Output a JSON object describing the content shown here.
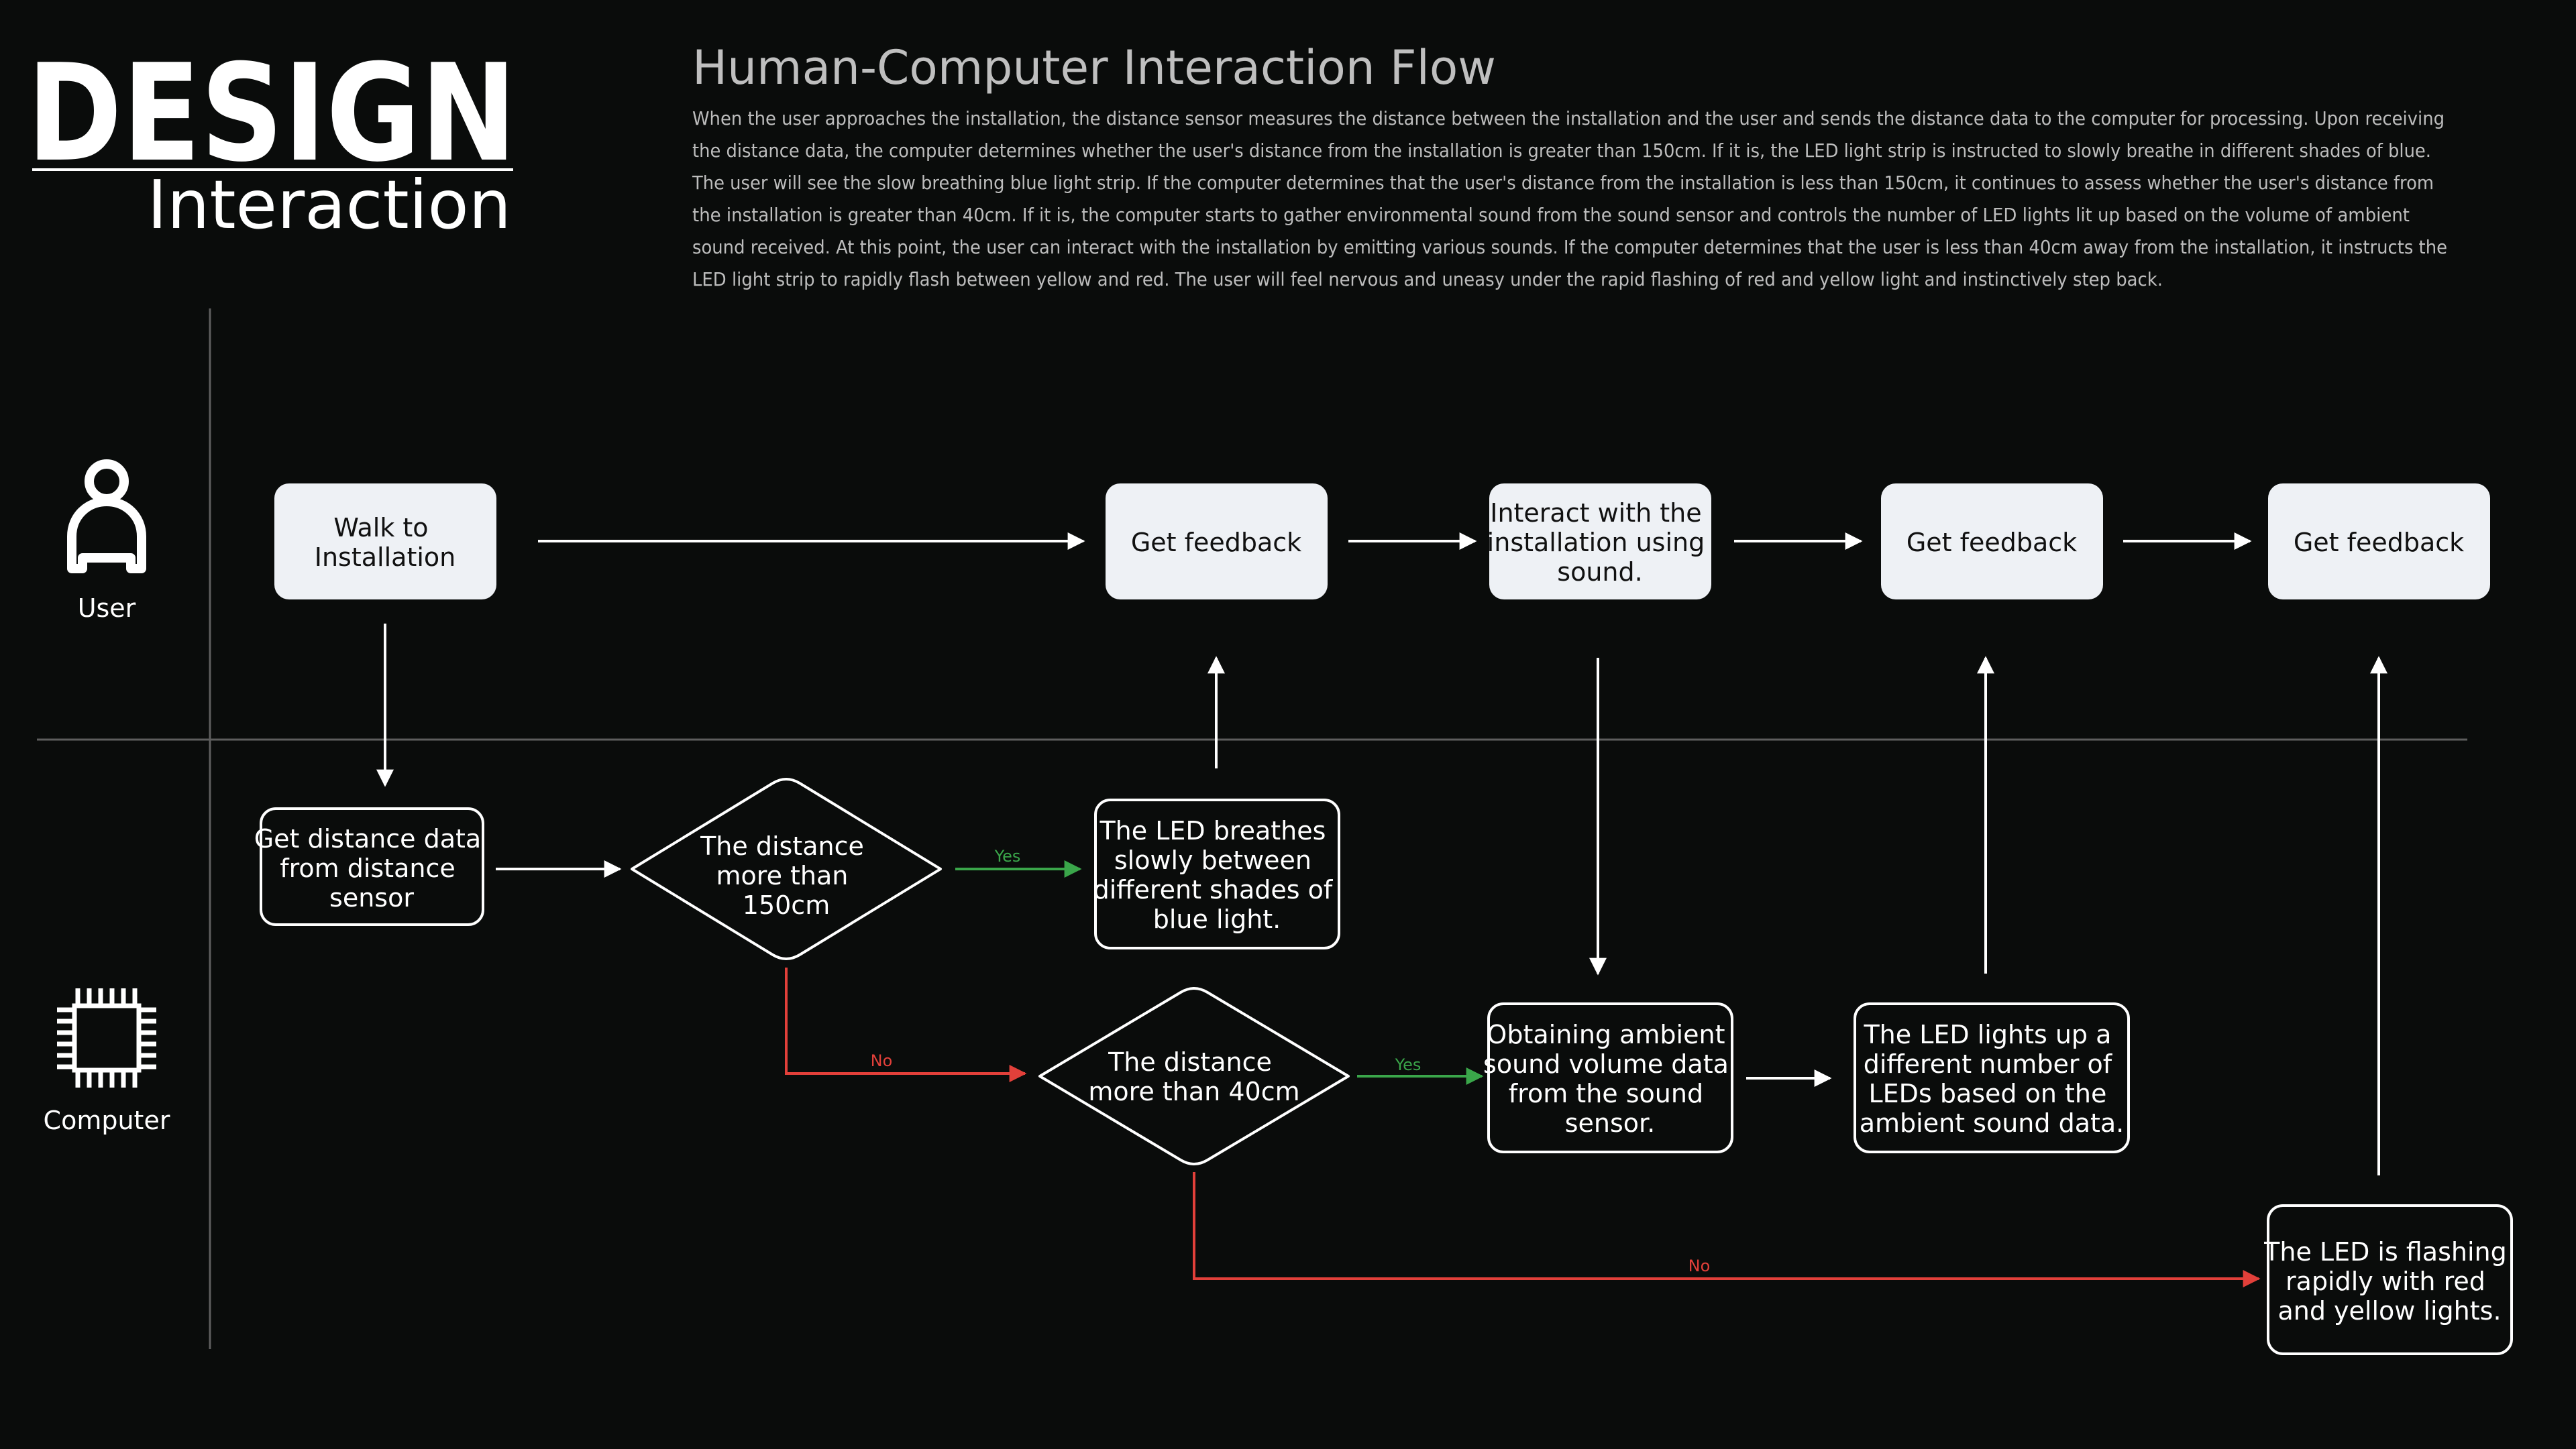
{
  "header": {
    "design": "DESIGN",
    "interaction": "Interaction",
    "title": "Human-Computer Interaction Flow",
    "description": [
      "When the user approaches the installation, the distance sensor measures the distance between the installation and the user and sends the distance data to the computer for processing. Upon receiving",
      "the distance data, the computer determines whether the user's distance from the installation is greater than 150cm. If it is, the LED light strip is instructed to slowly breathe in different shades of blue.",
      "The user will see the slow breathing blue light strip. If the computer determines that the user's distance from the installation is less than 150cm, it continues to assess whether the user's distance from",
      "the installation is greater than 40cm. If it is, the computer starts to gather environmental sound from the sound sensor and controls the number of LED lights lit up based on the volume of ambient",
      "sound received. At this point, the user can interact with the installation by emitting various sounds. If the computer determines that the user is less than 40cm away from the installation, it instructs the",
      "LED light strip to rapidly flash between yellow and red. The user will feel nervous and uneasy under the rapid flashing of red and yellow light and instinctively step back."
    ]
  },
  "lanes": {
    "user": "User",
    "computer": "Computer"
  },
  "nodes": {
    "walk": [
      "Walk to",
      "Installation"
    ],
    "feedback1": [
      "Get feedback"
    ],
    "interact": [
      "Interact with the",
      "installation using",
      "sound."
    ],
    "feedback2": [
      "Get feedback"
    ],
    "feedback3": [
      "Get feedback"
    ],
    "distance_data": [
      "Get distance data",
      "from distance",
      "sensor"
    ],
    "d150": [
      "The distance",
      "more than",
      "150cm"
    ],
    "breathe": [
      "The LED breathes",
      "slowly between",
      "different shades of",
      "blue light."
    ],
    "d40": [
      "The distance",
      "more than 40cm"
    ],
    "ambient": [
      "Obtaining ambient",
      "sound volume data",
      "from the sound",
      "sensor."
    ],
    "ledlights": [
      "The LED lights up a",
      "different number of",
      "LEDs based on the",
      "ambient sound data."
    ],
    "flash": [
      "The LED is flashing",
      "rapidly with red",
      "and yellow lights."
    ]
  },
  "edge_labels": {
    "yes1": "Yes",
    "no1": "No",
    "yes2": "Yes",
    "no2": "No"
  },
  "colors": {
    "background": "#0a0c0b",
    "line": "#ffffff",
    "user_box_fill": "#eef1f5",
    "user_box_text": "#111111",
    "title_gray": "#bfbfbf",
    "desc_gray": "#bdbdbd",
    "yes_green": "#3aa64a",
    "no_red": "#e2403a",
    "divider": "#5e5e5e"
  }
}
